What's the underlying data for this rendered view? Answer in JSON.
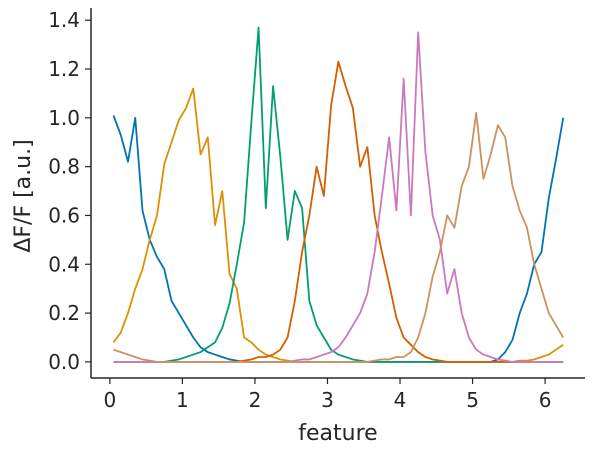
{
  "chart_data": {
    "type": "line",
    "xlabel": "feature",
    "ylabel": "ΔF/F [a.u.]",
    "xlim": [
      -0.26,
      6.55
    ],
    "ylim": [
      -0.066,
      1.45
    ],
    "xticks": [
      0,
      1,
      2,
      3,
      4,
      5,
      6
    ],
    "yticks": [
      {
        "value": 0,
        "label": "0.0"
      },
      0.2,
      0.4,
      0.6,
      0.8,
      {
        "value": 1,
        "label": "1.0"
      },
      1.2,
      1.4
    ],
    "grid": false,
    "x": [
      0.05,
      0.15,
      0.25,
      0.35,
      0.45,
      0.55,
      0.65,
      0.75,
      0.85,
      0.95,
      1.05,
      1.15,
      1.25,
      1.35,
      1.45,
      1.55,
      1.65,
      1.75,
      1.85,
      1.95,
      2.05,
      2.15,
      2.25,
      2.35,
      2.45,
      2.55,
      2.65,
      2.75,
      2.85,
      2.95,
      3.05,
      3.15,
      3.25,
      3.35,
      3.45,
      3.55,
      3.65,
      3.75,
      3.85,
      3.95,
      4.05,
      4.15,
      4.25,
      4.35,
      4.45,
      4.55,
      4.65,
      4.75,
      4.85,
      4.95,
      5.05,
      5.15,
      5.25,
      5.35,
      5.45,
      5.55,
      5.65,
      5.75,
      5.85,
      5.95,
      6.05,
      6.15,
      6.25
    ],
    "series": [
      {
        "color": "#0173b2",
        "values": [
          1.01,
          0.93,
          0.82,
          1.0,
          0.62,
          0.5,
          0.43,
          0.38,
          0.25,
          0.2,
          0.15,
          0.1,
          0.06,
          0.04,
          0.03,
          0.02,
          0.01,
          0.005,
          0,
          0,
          0,
          0,
          0,
          0,
          0,
          0,
          0,
          0,
          0,
          0,
          0,
          0,
          0,
          0,
          0,
          0,
          0,
          0,
          0,
          0,
          0,
          0,
          0,
          0,
          0,
          0,
          0,
          0,
          0,
          0,
          0,
          0,
          0,
          0.01,
          0.04,
          0.09,
          0.2,
          0.28,
          0.4,
          0.45,
          0.67,
          0.83,
          1.0
        ]
      },
      {
        "color": "#de8f05",
        "values": [
          0.08,
          0.12,
          0.2,
          0.3,
          0.38,
          0.5,
          0.6,
          0.81,
          0.9,
          0.99,
          1.04,
          1.12,
          0.85,
          0.92,
          0.56,
          0.7,
          0.36,
          0.3,
          0.1,
          0.08,
          0.05,
          0.03,
          0.02,
          0.01,
          0.005,
          0,
          0,
          0,
          0,
          0,
          0,
          0,
          0,
          0,
          0,
          0,
          0,
          0,
          0,
          0,
          0,
          0,
          0,
          0,
          0,
          0,
          0,
          0,
          0,
          0,
          0,
          0,
          0,
          0,
          0,
          0,
          0.005,
          0.005,
          0.01,
          0.02,
          0.03,
          0.05,
          0.07
        ]
      },
      {
        "color": "#029e73",
        "values": [
          0,
          0,
          0,
          0,
          0,
          0,
          0,
          0,
          0.005,
          0.01,
          0.02,
          0.03,
          0.04,
          0.06,
          0.08,
          0.14,
          0.24,
          0.4,
          0.57,
          0.98,
          1.37,
          0.63,
          1.13,
          0.84,
          0.5,
          0.7,
          0.63,
          0.25,
          0.15,
          0.1,
          0.05,
          0.03,
          0.02,
          0.01,
          0.005,
          0,
          0,
          0,
          0,
          0,
          0,
          0,
          0,
          0,
          0,
          0,
          0,
          0,
          0,
          0,
          0,
          0,
          0,
          0,
          0,
          0,
          0,
          0,
          0,
          0,
          0,
          0,
          0
        ]
      },
      {
        "color": "#d55e00",
        "values": [
          0,
          0,
          0,
          0,
          0,
          0,
          0,
          0,
          0,
          0,
          0,
          0,
          0,
          0,
          0,
          0,
          0,
          0,
          0.005,
          0.01,
          0.02,
          0.02,
          0.03,
          0.05,
          0.1,
          0.25,
          0.45,
          0.6,
          0.8,
          0.68,
          1.05,
          1.23,
          1.13,
          1.04,
          0.8,
          0.88,
          0.6,
          0.45,
          0.32,
          0.18,
          0.1,
          0.07,
          0.04,
          0.02,
          0.01,
          0.005,
          0,
          0,
          0,
          0,
          0,
          0,
          0,
          0,
          0,
          0,
          0,
          0,
          0,
          0,
          0,
          0,
          0
        ]
      },
      {
        "color": "#cc78bc",
        "values": [
          0,
          0,
          0,
          0,
          0,
          0,
          0,
          0,
          0,
          0,
          0,
          0,
          0,
          0,
          0,
          0,
          0,
          0,
          0,
          0,
          0,
          0,
          0,
          0,
          0,
          0.005,
          0.01,
          0.01,
          0.02,
          0.03,
          0.04,
          0.06,
          0.1,
          0.15,
          0.2,
          0.28,
          0.45,
          0.68,
          0.92,
          0.62,
          1.16,
          0.6,
          1.35,
          0.86,
          0.6,
          0.5,
          0.28,
          0.38,
          0.2,
          0.1,
          0.05,
          0.03,
          0.02,
          0.01,
          0.005,
          0,
          0,
          0,
          0,
          0,
          0,
          0,
          0
        ]
      },
      {
        "color": "#ca9161",
        "values": [
          0.05,
          0.04,
          0.03,
          0.02,
          0.01,
          0.005,
          0,
          0,
          0,
          0,
          0,
          0,
          0,
          0,
          0,
          0,
          0,
          0,
          0,
          0,
          0,
          0,
          0,
          0,
          0,
          0,
          0,
          0,
          0,
          0,
          0,
          0,
          0,
          0,
          0,
          0,
          0.005,
          0.01,
          0.01,
          0.02,
          0.02,
          0.04,
          0.1,
          0.2,
          0.35,
          0.45,
          0.6,
          0.55,
          0.72,
          0.8,
          1.02,
          0.75,
          0.85,
          0.97,
          0.92,
          0.72,
          0.62,
          0.55,
          0.4,
          0.3,
          0.2,
          0.15,
          0.1
        ]
      }
    ]
  }
}
